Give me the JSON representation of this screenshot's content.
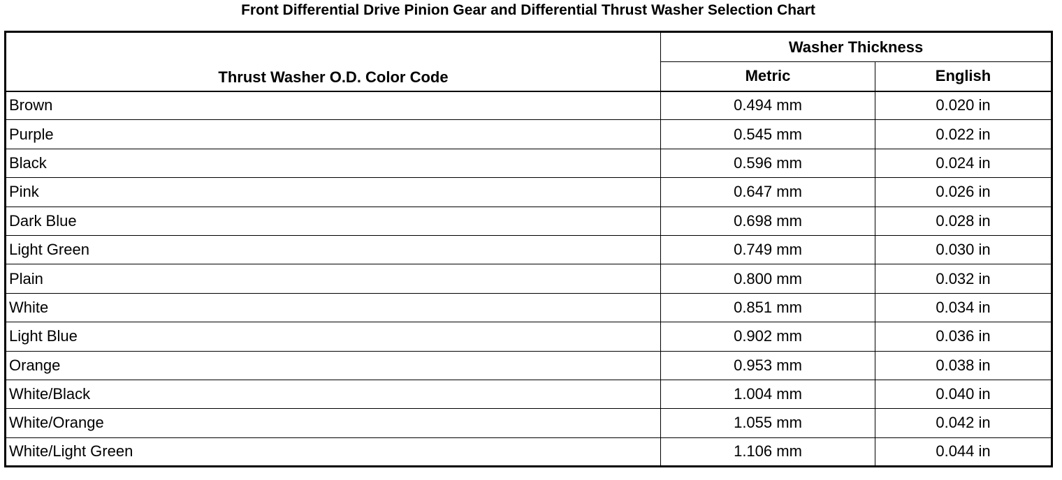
{
  "title": "Front Differential Drive Pinion Gear and Differential Thrust Washer Selection Chart",
  "headers": {
    "color_code": "Thrust Washer O.D. Color Code",
    "group": "Washer Thickness",
    "metric": "Metric",
    "english": "English"
  },
  "rows": [
    {
      "color": "Brown",
      "metric": "0.494 mm",
      "english": "0.020 in"
    },
    {
      "color": "Purple",
      "metric": "0.545 mm",
      "english": "0.022 in"
    },
    {
      "color": "Black",
      "metric": "0.596 mm",
      "english": "0.024 in"
    },
    {
      "color": "Pink",
      "metric": "0.647 mm",
      "english": "0.026 in"
    },
    {
      "color": "Dark Blue",
      "metric": "0.698 mm",
      "english": "0.028 in"
    },
    {
      "color": "Light Green",
      "metric": "0.749 mm",
      "english": "0.030 in"
    },
    {
      "color": "Plain",
      "metric": "0.800 mm",
      "english": "0.032 in"
    },
    {
      "color": "White",
      "metric": "0.851 mm",
      "english": "0.034 in"
    },
    {
      "color": "Light Blue",
      "metric": "0.902 mm",
      "english": "0.036 in"
    },
    {
      "color": "Orange",
      "metric": "0.953 mm",
      "english": "0.038 in"
    },
    {
      "color": "White/Black",
      "metric": "1.004 mm",
      "english": "0.040 in"
    },
    {
      "color": "White/Orange",
      "metric": "1.055 mm",
      "english": "0.042 in"
    },
    {
      "color": "White/Light Green",
      "metric": "1.106 mm",
      "english": "0.044 in"
    }
  ]
}
